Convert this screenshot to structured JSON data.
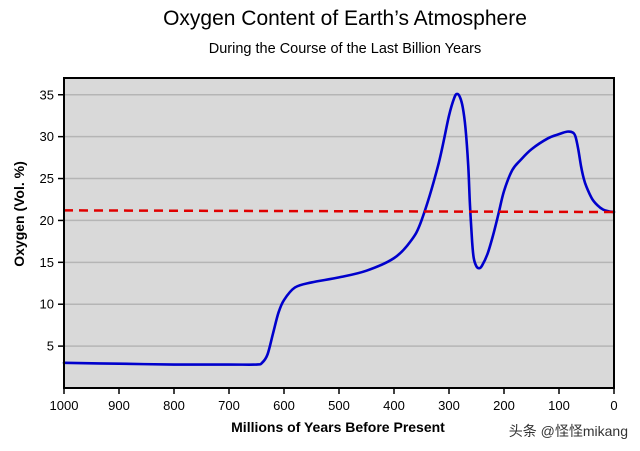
{
  "chart_data": {
    "type": "line",
    "title": "Oxygen Content of Earth’s Atmosphere",
    "subtitle": "During the Course of the Last Billion Years",
    "xlabel": "Millions of Years Before Present",
    "ylabel": "Oxygen (Vol. %)",
    "xlim": [
      1000,
      0
    ],
    "ylim": [
      0,
      37
    ],
    "x_ticks": [
      1000,
      900,
      800,
      700,
      600,
      500,
      400,
      300,
      200,
      100,
      0
    ],
    "y_ticks": [
      5,
      10,
      15,
      20,
      25,
      30,
      35
    ],
    "grid": "horizontal",
    "background": "#d9d9d9",
    "series": [
      {
        "color": "#0000cc",
        "style": "solid",
        "x": [
          1000,
          900,
          800,
          700,
          650,
          640,
          630,
          620,
          610,
          600,
          580,
          550,
          500,
          450,
          400,
          370,
          350,
          320,
          300,
          290,
          285,
          280,
          275,
          270,
          265,
          262,
          258,
          255,
          250,
          245,
          240,
          230,
          220,
          210,
          200,
          185,
          170,
          150,
          120,
          100,
          85,
          75,
          70,
          65,
          60,
          55,
          50,
          40,
          30,
          20,
          10,
          0
        ],
        "y": [
          3.0,
          2.9,
          2.8,
          2.8,
          2.8,
          3.0,
          4.0,
          6.5,
          9.0,
          10.5,
          12.0,
          12.6,
          13.2,
          14.0,
          15.5,
          17.5,
          20.0,
          26.5,
          32.5,
          34.7,
          35.1,
          34.7,
          33.5,
          31.0,
          26.5,
          22.0,
          17.5,
          15.5,
          14.5,
          14.3,
          14.6,
          16.0,
          18.2,
          20.8,
          23.5,
          26.0,
          27.2,
          28.5,
          29.8,
          30.3,
          30.6,
          30.5,
          30.0,
          28.5,
          26.5,
          25.0,
          24.0,
          22.6,
          21.8,
          21.3,
          21.1,
          21.0
        ]
      },
      {
        "color": "#e00000",
        "style": "dashed",
        "x": [
          1000,
          0
        ],
        "y": [
          21.2,
          21.0
        ]
      }
    ]
  },
  "watermark": "头条 @怪怪mikang"
}
